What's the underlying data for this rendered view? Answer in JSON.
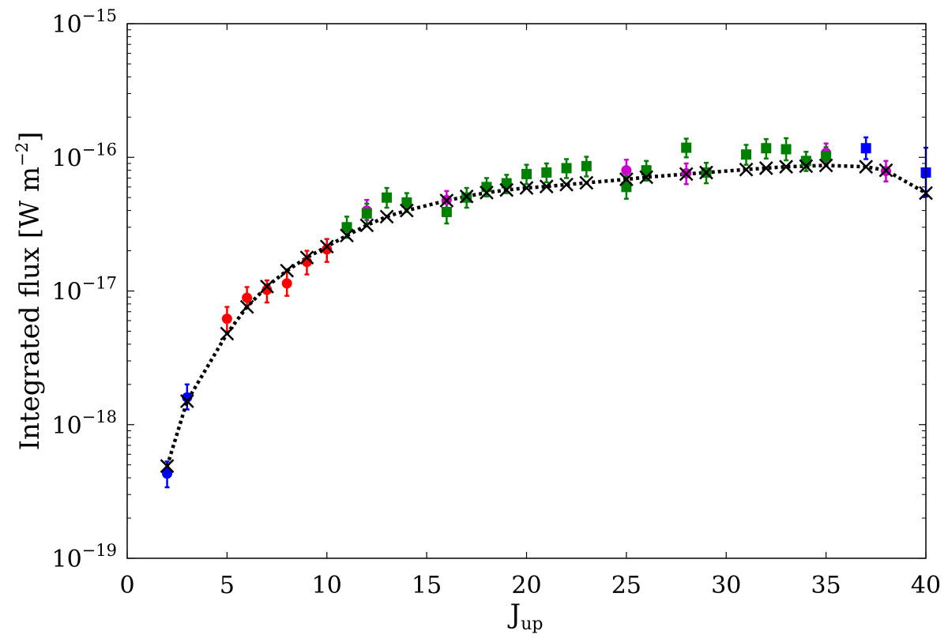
{
  "chart_data": {
    "type": "scatter",
    "title": "",
    "xlabel": "J",
    "xlabel_sub": "up",
    "ylabel": "Integrated flux [W m",
    "ylabel_sup": "−2",
    "ylabel_end": "]",
    "xlim": [
      0,
      40
    ],
    "ylim": [
      1e-19,
      1e-15
    ],
    "yscale": "log",
    "grid": false,
    "x_ticks": [
      0,
      5,
      10,
      15,
      20,
      25,
      30,
      35,
      40
    ],
    "x_tick_labels": [
      "0",
      "5",
      "10",
      "15",
      "20",
      "25",
      "30",
      "35",
      "40"
    ],
    "y_ticks": [
      1e-19,
      1e-18,
      1e-17,
      1e-16,
      1e-15
    ],
    "y_tick_bases": [
      "10",
      "10",
      "10",
      "10",
      "10"
    ],
    "y_tick_exps": [
      "−19",
      "−18",
      "−17",
      "−16",
      "−15"
    ],
    "series": [
      {
        "color": "#0000ff",
        "marker": "circle",
        "points": [
          {
            "x": 2,
            "y": 4.3e-19,
            "lo": 3.4e-19,
            "hi": 5.3e-19
          },
          {
            "x": 3,
            "y": 1.6e-18,
            "lo": 1.3e-18,
            "hi": 2e-18
          }
        ]
      },
      {
        "color": "#ff0000",
        "marker": "circle",
        "points": [
          {
            "x": 5,
            "y": 6.2e-18,
            "lo": 5e-18,
            "hi": 7.6e-18
          },
          {
            "x": 6,
            "y": 8.9e-18,
            "lo": 7.5e-18,
            "hi": 1.07e-17
          },
          {
            "x": 7,
            "y": 1.02e-17,
            "lo": 8.2e-18,
            "hi": 1.2e-17
          },
          {
            "x": 8,
            "y": 1.14e-17,
            "lo": 9.2e-18,
            "hi": 1.4e-17
          },
          {
            "x": 9,
            "y": 1.65e-17,
            "lo": 1.33e-17,
            "hi": 2e-17
          },
          {
            "x": 10,
            "y": 2.05e-17,
            "lo": 1.65e-17,
            "hi": 2.45e-17
          }
        ]
      },
      {
        "color": "#cc00cc",
        "marker": "circle",
        "points": [
          {
            "x": 12,
            "y": 4e-17,
            "lo": 3.4e-17,
            "hi": 4.8e-17
          },
          {
            "x": 16,
            "y": 4.8e-17,
            "lo": 4.2e-17,
            "hi": 5.6e-17
          },
          {
            "x": 25,
            "y": 8e-17,
            "lo": 6.8e-17,
            "hi": 9.6e-17
          },
          {
            "x": 28,
            "y": 7.6e-17,
            "lo": 6.3e-17,
            "hi": 9e-17
          },
          {
            "x": 35,
            "y": 1.08e-16,
            "lo": 9.2e-17,
            "hi": 1.27e-16
          },
          {
            "x": 38,
            "y": 7.9e-17,
            "lo": 6.6e-17,
            "hi": 9.4e-17
          }
        ]
      },
      {
        "color": "#008000",
        "marker": "square",
        "points": [
          {
            "x": 11,
            "y": 3e-17,
            "lo": 2.5e-17,
            "hi": 3.6e-17
          },
          {
            "x": 12,
            "y": 3.8e-17,
            "lo": 3.2e-17,
            "hi": 4.5e-17
          },
          {
            "x": 13,
            "y": 5e-17,
            "lo": 4.2e-17,
            "hi": 5.9e-17
          },
          {
            "x": 14,
            "y": 4.6e-17,
            "lo": 3.9e-17,
            "hi": 5.4e-17
          },
          {
            "x": 16,
            "y": 3.9e-17,
            "lo": 3.2e-17,
            "hi": 4.6e-17
          },
          {
            "x": 17,
            "y": 5e-17,
            "lo": 4.2e-17,
            "hi": 5.9e-17
          },
          {
            "x": 18,
            "y": 6e-17,
            "lo": 5.1e-17,
            "hi": 7e-17
          },
          {
            "x": 19,
            "y": 6.4e-17,
            "lo": 5.4e-17,
            "hi": 7.4e-17
          },
          {
            "x": 20,
            "y": 7.5e-17,
            "lo": 6.3e-17,
            "hi": 8.8e-17
          },
          {
            "x": 21,
            "y": 7.7e-17,
            "lo": 6.5e-17,
            "hi": 9e-17
          },
          {
            "x": 22,
            "y": 8.3e-17,
            "lo": 7e-17,
            "hi": 9.7e-17
          },
          {
            "x": 23,
            "y": 8.6e-17,
            "lo": 7.2e-17,
            "hi": 1.01e-16
          },
          {
            "x": 25,
            "y": 6e-17,
            "lo": 4.9e-17,
            "hi": 7.2e-17
          },
          {
            "x": 26,
            "y": 8e-17,
            "lo": 6.7e-17,
            "hi": 9.4e-17
          },
          {
            "x": 28,
            "y": 1.18e-16,
            "lo": 1e-16,
            "hi": 1.38e-16
          },
          {
            "x": 29,
            "y": 7.7e-17,
            "lo": 6.4e-17,
            "hi": 9.1e-17
          },
          {
            "x": 31,
            "y": 1.05e-16,
            "lo": 8.8e-17,
            "hi": 1.24e-16
          },
          {
            "x": 32,
            "y": 1.17e-16,
            "lo": 9.8e-17,
            "hi": 1.37e-16
          },
          {
            "x": 33,
            "y": 1.15e-16,
            "lo": 9.5e-17,
            "hi": 1.39e-16
          },
          {
            "x": 34,
            "y": 9.4e-17,
            "lo": 7.9e-17,
            "hi": 1.1e-16
          },
          {
            "x": 35,
            "y": 1.02e-16,
            "lo": 8.6e-17,
            "hi": 1.19e-16
          }
        ]
      },
      {
        "color": "#0000ff",
        "marker": "square",
        "points": [
          {
            "x": 37,
            "y": 1.17e-16,
            "lo": 9.7e-17,
            "hi": 1.41e-16
          },
          {
            "x": 40,
            "y": 7.7e-17,
            "lo": 5.1e-17,
            "hi": 1.18e-16
          }
        ]
      }
    ],
    "model": {
      "color": "#000000",
      "marker": "x",
      "line": "dotted",
      "x": [
        2,
        3,
        5,
        6,
        7,
        8,
        9,
        10,
        11,
        12,
        13,
        14,
        16,
        17,
        18,
        19,
        20,
        21,
        22,
        23,
        25,
        26,
        28,
        29,
        31,
        32,
        33,
        34,
        35,
        37,
        38,
        40
      ],
      "y": [
        4.9e-19,
        1.5e-18,
        4.8e-18,
        7.6e-18,
        1.08e-17,
        1.42e-17,
        1.78e-17,
        2.15e-17,
        2.6e-17,
        3.1e-17,
        3.6e-17,
        4e-17,
        4.75e-17,
        5.1e-17,
        5.45e-17,
        5.7e-17,
        5.9e-17,
        6.05e-17,
        6.25e-17,
        6.45e-17,
        6.85e-17,
        7.1e-17,
        7.5e-17,
        7.7e-17,
        8.1e-17,
        8.3e-17,
        8.5e-17,
        8.6e-17,
        8.7e-17,
        8.5e-17,
        8e-17,
        5.4e-17
      ]
    }
  }
}
